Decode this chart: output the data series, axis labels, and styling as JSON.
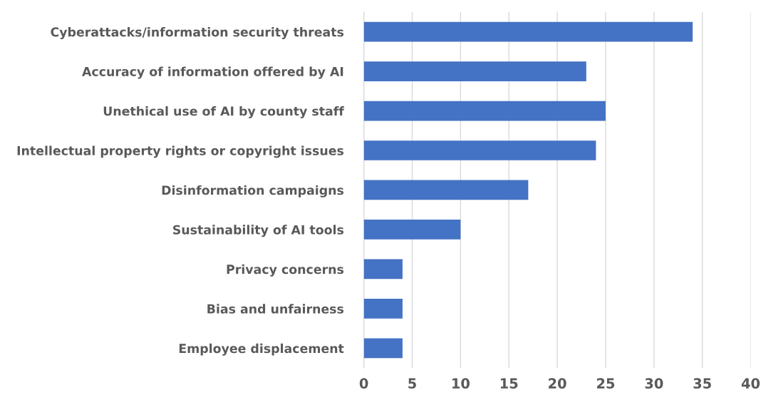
{
  "chart_data": {
    "type": "bar",
    "orientation": "horizontal",
    "categories": [
      "Cyberattacks/information security threats",
      "Accuracy of information offered by AI",
      "Unethical use of AI by county staff",
      "Intellectual property rights or copyright issues",
      "Disinformation campaigns",
      "Sustainability of AI tools",
      "Privacy concerns",
      "Bias and unfairness",
      "Employee displacement"
    ],
    "values": [
      34,
      23,
      25,
      24,
      17,
      10,
      4,
      4,
      4
    ],
    "color": "#4472c4",
    "xlim": [
      0,
      40
    ],
    "xticks": [
      0,
      5,
      10,
      15,
      20,
      25,
      30,
      35,
      40
    ],
    "grid": "x"
  }
}
